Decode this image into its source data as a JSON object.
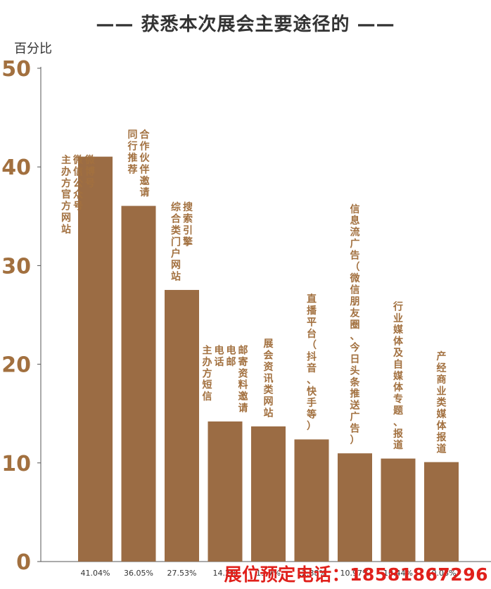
{
  "chart_data": {
    "type": "bar",
    "title": "获悉本次展会主要途径的",
    "ylabel": "百分比",
    "ylim": [
      0,
      50
    ],
    "yticks": [
      0,
      10,
      20,
      30,
      40,
      50
    ],
    "categories": [
      "主办方官方网站 微信公众号 微博号",
      "同行推荐 合作伙伴邀请",
      "综合类门户网站 搜索引擎",
      "主办方短信 电话 电邮 邮寄资料邀请",
      "展会资讯类网站",
      "直播平台（抖音、快手等）",
      "信息流广告（微信朋友圈、今日头条推送广告）",
      "行业媒体及自媒体专题、报道",
      "产经商业类媒体报道"
    ],
    "values": [
      41.04,
      36.05,
      27.53,
      14.2,
      13.7,
      12.38,
      10.97,
      10.44,
      10.08
    ],
    "value_labels": [
      "41.04%",
      "36.05%",
      "27.53%",
      "14.2%",
      "13.7%",
      "12.38%",
      "10.97%",
      "10.44%",
      "10.08%"
    ],
    "bar_color": "#9b6c44",
    "label_color": "#a2703f",
    "tick_color": "#a2703f"
  },
  "footer_text": "展位预定电话：18581867296"
}
